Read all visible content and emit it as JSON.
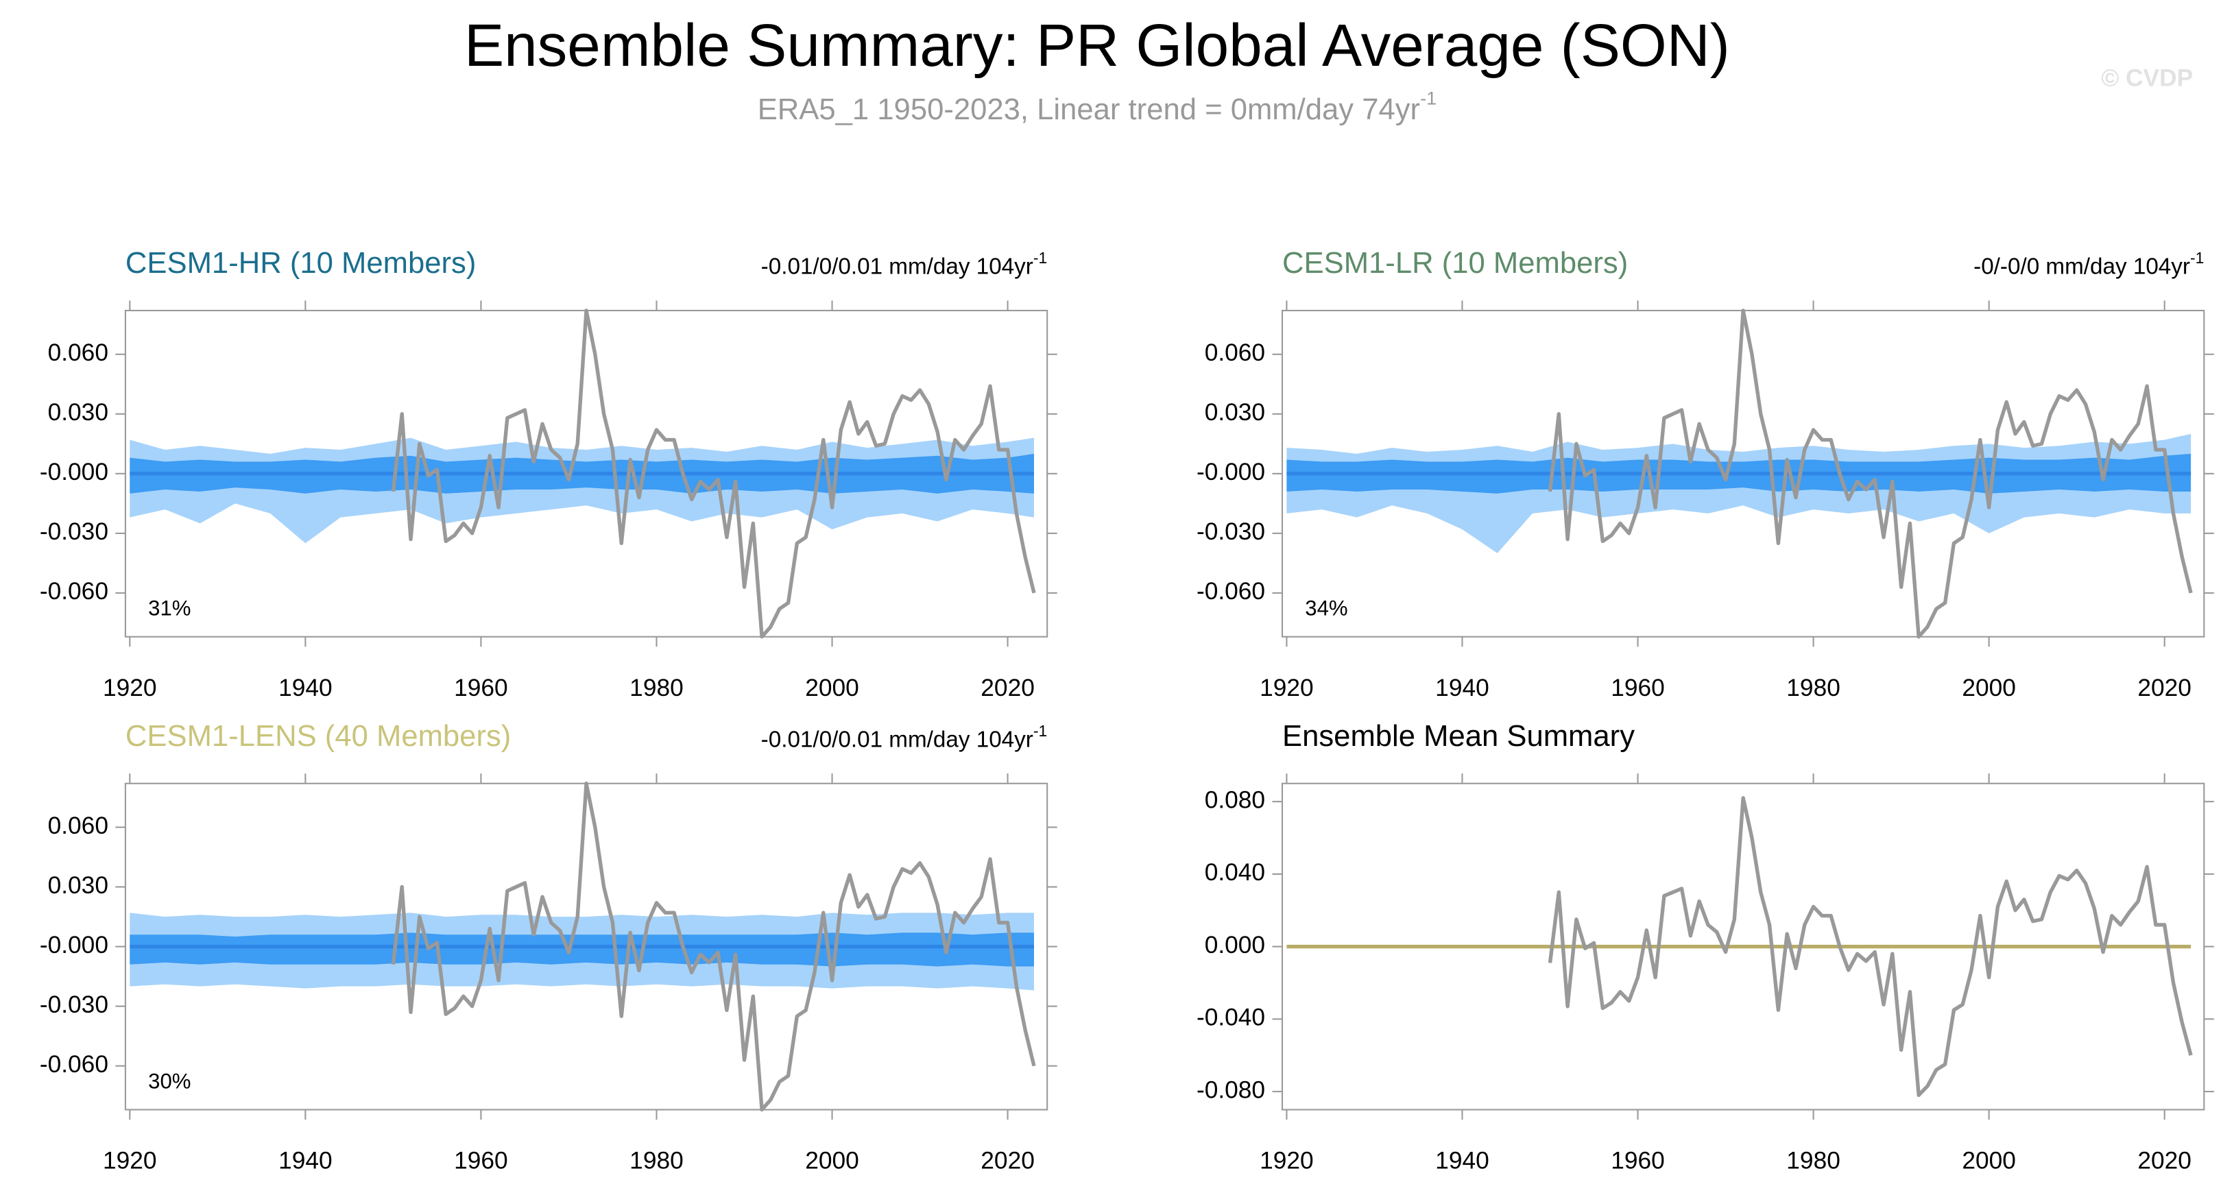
{
  "page": {
    "title": "Ensemble Summary: PR Global Average (SON)",
    "subtitle": "ERA5_1 1950-2023, Linear trend = 0mm/day 74yr",
    "subtitle_sup": "-1",
    "watermark": "© CVDP"
  },
  "observed": {
    "color": "#999999",
    "x": [
      1950,
      1951,
      1952,
      1953,
      1954,
      1955,
      1956,
      1957,
      1958,
      1959,
      1960,
      1961,
      1962,
      1963,
      1964,
      1965,
      1966,
      1967,
      1968,
      1969,
      1970,
      1971,
      1972,
      1973,
      1974,
      1975,
      1976,
      1977,
      1978,
      1979,
      1980,
      1981,
      1982,
      1983,
      1984,
      1985,
      1986,
      1987,
      1988,
      1989,
      1990,
      1991,
      1992,
      1993,
      1994,
      1995,
      1996,
      1997,
      1998,
      1999,
      2000,
      2001,
      2002,
      2003,
      2004,
      2005,
      2006,
      2007,
      2008,
      2009,
      2010,
      2011,
      2012,
      2013,
      2014,
      2015,
      2016,
      2017,
      2018,
      2019,
      2020,
      2021,
      2022,
      2023
    ],
    "values": [
      -0.009,
      0.03,
      -0.033,
      0.015,
      -0.001,
      0.002,
      -0.034,
      -0.031,
      -0.025,
      -0.03,
      -0.017,
      0.009,
      -0.017,
      0.028,
      0.03,
      0.032,
      0.006,
      0.025,
      0.012,
      0.008,
      -0.003,
      0.015,
      0.082,
      0.06,
      0.03,
      0.012,
      -0.035,
      0.007,
      -0.012,
      0.012,
      0.022,
      0.017,
      0.017,
      0.0,
      -0.013,
      -0.004,
      -0.008,
      -0.003,
      -0.032,
      -0.004,
      -0.057,
      -0.025,
      -0.082,
      -0.077,
      -0.068,
      -0.065,
      -0.035,
      -0.032,
      -0.013,
      0.017,
      -0.017,
      0.022,
      0.036,
      0.02,
      0.026,
      0.014,
      0.015,
      0.03,
      0.039,
      0.037,
      0.042,
      0.035,
      0.021,
      -0.003,
      0.017,
      0.012,
      0.019,
      0.025,
      0.044,
      0.012,
      0.012,
      -0.02,
      -0.042,
      -0.06
    ]
  },
  "chart_data": [
    {
      "type": "line",
      "title": "CESM1-HR (10 Members)",
      "title_color": "#1a6e8e",
      "trend_label": "-0.01/0/0.01 mm/day 104yr",
      "trend_sup": "-1",
      "annotation": "31%",
      "xlim": [
        1919.5,
        2024.5
      ],
      "xticks": [
        1920,
        1940,
        1960,
        1980,
        2000,
        2020
      ],
      "ylim": [
        -0.082,
        0.082
      ],
      "yticks": [
        {
          "value": 0.06,
          "label": "0.060"
        },
        {
          "value": 0.03,
          "label": "0.030"
        },
        {
          "value": 0,
          "label": "-0.000"
        },
        {
          "value": -0.03,
          "label": "-0.030"
        },
        {
          "value": -0.06,
          "label": "-0.060"
        }
      ],
      "band_x": [
        1920,
        1924,
        1928,
        1932,
        1936,
        1940,
        1944,
        1948,
        1952,
        1956,
        1960,
        1964,
        1968,
        1972,
        1976,
        1980,
        1984,
        1988,
        1992,
        1996,
        2000,
        2004,
        2008,
        2012,
        2016,
        2020,
        2023
      ],
      "bands": [
        {
          "color": "#a6d3fb",
          "upper": [
            0.017,
            0.012,
            0.014,
            0.012,
            0.01,
            0.013,
            0.012,
            0.015,
            0.018,
            0.012,
            0.014,
            0.016,
            0.013,
            0.012,
            0.014,
            0.012,
            0.013,
            0.011,
            0.014,
            0.012,
            0.016,
            0.013,
            0.015,
            0.017,
            0.014,
            0.016,
            0.018
          ],
          "lower": [
            -0.022,
            -0.018,
            -0.025,
            -0.015,
            -0.02,
            -0.035,
            -0.022,
            -0.02,
            -0.018,
            -0.025,
            -0.022,
            -0.02,
            -0.018,
            -0.016,
            -0.02,
            -0.018,
            -0.024,
            -0.02,
            -0.022,
            -0.018,
            -0.028,
            -0.022,
            -0.02,
            -0.024,
            -0.018,
            -0.02,
            -0.022
          ]
        },
        {
          "color": "#3d9cf3",
          "upper": [
            0.008,
            0.006,
            0.007,
            0.006,
            0.006,
            0.007,
            0.006,
            0.008,
            0.009,
            0.006,
            0.007,
            0.008,
            0.007,
            0.006,
            0.007,
            0.006,
            0.007,
            0.006,
            0.007,
            0.006,
            0.008,
            0.007,
            0.008,
            0.009,
            0.007,
            0.008,
            0.01
          ],
          "lower": [
            -0.01,
            -0.008,
            -0.009,
            -0.007,
            -0.008,
            -0.01,
            -0.008,
            -0.009,
            -0.008,
            -0.01,
            -0.009,
            -0.008,
            -0.008,
            -0.007,
            -0.008,
            -0.008,
            -0.01,
            -0.008,
            -0.009,
            -0.008,
            -0.01,
            -0.009,
            -0.008,
            -0.01,
            -0.008,
            -0.009,
            -0.01
          ]
        }
      ],
      "series": [
        {
          "color": "#2f86e6",
          "x": [
            1920,
            2023
          ],
          "values": [
            0,
            0
          ]
        }
      ]
    },
    {
      "type": "line",
      "title": "CESM1-LR (10 Members)",
      "title_color": "#5e8c6a",
      "trend_label": "-0/-0/0 mm/day 104yr",
      "trend_sup": "-1",
      "annotation": "34%",
      "xlim": [
        1919.5,
        2024.5
      ],
      "xticks": [
        1920,
        1940,
        1960,
        1980,
        2000,
        2020
      ],
      "ylim": [
        -0.082,
        0.082
      ],
      "yticks": [
        {
          "value": 0.06,
          "label": "0.060"
        },
        {
          "value": 0.03,
          "label": "0.030"
        },
        {
          "value": 0,
          "label": "-0.000"
        },
        {
          "value": -0.03,
          "label": "-0.030"
        },
        {
          "value": -0.06,
          "label": "-0.060"
        }
      ],
      "band_x": [
        1920,
        1924,
        1928,
        1932,
        1936,
        1940,
        1944,
        1948,
        1952,
        1956,
        1960,
        1964,
        1968,
        1972,
        1976,
        1980,
        1984,
        1988,
        1992,
        1996,
        2000,
        2004,
        2008,
        2012,
        2016,
        2020,
        2023
      ],
      "bands": [
        {
          "color": "#a6d3fb",
          "upper": [
            0.013,
            0.012,
            0.01,
            0.013,
            0.011,
            0.012,
            0.014,
            0.011,
            0.016,
            0.012,
            0.013,
            0.015,
            0.012,
            0.011,
            0.013,
            0.014,
            0.012,
            0.011,
            0.012,
            0.014,
            0.015,
            0.013,
            0.014,
            0.016,
            0.015,
            0.017,
            0.02
          ],
          "lower": [
            -0.02,
            -0.018,
            -0.022,
            -0.016,
            -0.02,
            -0.028,
            -0.04,
            -0.02,
            -0.018,
            -0.022,
            -0.02,
            -0.018,
            -0.02,
            -0.016,
            -0.022,
            -0.018,
            -0.02,
            -0.018,
            -0.024,
            -0.02,
            -0.03,
            -0.022,
            -0.02,
            -0.022,
            -0.018,
            -0.02,
            -0.02
          ]
        },
        {
          "color": "#3d9cf3",
          "upper": [
            0.007,
            0.006,
            0.006,
            0.007,
            0.006,
            0.006,
            0.007,
            0.006,
            0.008,
            0.006,
            0.007,
            0.007,
            0.006,
            0.006,
            0.007,
            0.007,
            0.006,
            0.006,
            0.006,
            0.007,
            0.008,
            0.007,
            0.007,
            0.008,
            0.007,
            0.009,
            0.01
          ],
          "lower": [
            -0.009,
            -0.008,
            -0.009,
            -0.008,
            -0.008,
            -0.009,
            -0.01,
            -0.008,
            -0.008,
            -0.009,
            -0.008,
            -0.008,
            -0.008,
            -0.007,
            -0.009,
            -0.008,
            -0.009,
            -0.008,
            -0.009,
            -0.008,
            -0.01,
            -0.009,
            -0.008,
            -0.009,
            -0.008,
            -0.009,
            -0.009
          ]
        }
      ],
      "series": [
        {
          "color": "#2f86e6",
          "x": [
            1920,
            2023
          ],
          "values": [
            0,
            0
          ]
        }
      ]
    },
    {
      "type": "line",
      "title": "CESM1-LENS (40 Members)",
      "title_color": "#c9c47a",
      "trend_label": "-0.01/0/0.01 mm/day 104yr",
      "trend_sup": "-1",
      "annotation": "30%",
      "xlim": [
        1919.5,
        2024.5
      ],
      "xticks": [
        1920,
        1940,
        1960,
        1980,
        2000,
        2020
      ],
      "ylim": [
        -0.082,
        0.082
      ],
      "yticks": [
        {
          "value": 0.06,
          "label": "0.060"
        },
        {
          "value": 0.03,
          "label": "0.030"
        },
        {
          "value": 0,
          "label": "-0.000"
        },
        {
          "value": -0.03,
          "label": "-0.030"
        },
        {
          "value": -0.06,
          "label": "-0.060"
        }
      ],
      "band_x": [
        1920,
        1924,
        1928,
        1932,
        1936,
        1940,
        1944,
        1948,
        1952,
        1956,
        1960,
        1964,
        1968,
        1972,
        1976,
        1980,
        1984,
        1988,
        1992,
        1996,
        2000,
        2004,
        2008,
        2012,
        2016,
        2020,
        2023
      ],
      "bands": [
        {
          "color": "#a6d3fb",
          "upper": [
            0.017,
            0.015,
            0.016,
            0.015,
            0.015,
            0.016,
            0.015,
            0.016,
            0.017,
            0.015,
            0.016,
            0.016,
            0.015,
            0.015,
            0.016,
            0.015,
            0.016,
            0.015,
            0.016,
            0.015,
            0.017,
            0.016,
            0.017,
            0.017,
            0.016,
            0.017,
            0.017
          ],
          "lower": [
            -0.02,
            -0.019,
            -0.02,
            -0.019,
            -0.02,
            -0.021,
            -0.02,
            -0.02,
            -0.019,
            -0.02,
            -0.02,
            -0.019,
            -0.02,
            -0.019,
            -0.02,
            -0.019,
            -0.02,
            -0.019,
            -0.02,
            -0.02,
            -0.021,
            -0.02,
            -0.02,
            -0.021,
            -0.02,
            -0.021,
            -0.022
          ]
        },
        {
          "color": "#3d9cf3",
          "upper": [
            0.006,
            0.006,
            0.006,
            0.005,
            0.006,
            0.006,
            0.006,
            0.006,
            0.007,
            0.006,
            0.006,
            0.006,
            0.006,
            0.006,
            0.006,
            0.006,
            0.006,
            0.006,
            0.006,
            0.006,
            0.007,
            0.006,
            0.007,
            0.007,
            0.006,
            0.007,
            0.007
          ],
          "lower": [
            -0.009,
            -0.008,
            -0.009,
            -0.008,
            -0.009,
            -0.009,
            -0.009,
            -0.009,
            -0.008,
            -0.009,
            -0.009,
            -0.008,
            -0.009,
            -0.008,
            -0.009,
            -0.008,
            -0.009,
            -0.008,
            -0.009,
            -0.009,
            -0.01,
            -0.009,
            -0.009,
            -0.01,
            -0.009,
            -0.01,
            -0.01
          ]
        }
      ],
      "series": [
        {
          "color": "#2f86e6",
          "x": [
            1920,
            2023
          ],
          "values": [
            0,
            0
          ]
        }
      ]
    },
    {
      "type": "line",
      "title": "Ensemble Mean Summary",
      "title_color": "#000000",
      "xlim": [
        1919.5,
        2024.5
      ],
      "xticks": [
        1920,
        1940,
        1960,
        1980,
        2000,
        2020
      ],
      "ylim": [
        -0.09,
        0.09
      ],
      "yticks": [
        {
          "value": 0.08,
          "label": "0.080"
        },
        {
          "value": 0.04,
          "label": "0.040"
        },
        {
          "value": 0,
          "label": "0.000"
        },
        {
          "value": -0.04,
          "label": "-0.040"
        },
        {
          "value": -0.08,
          "label": "-0.080"
        }
      ],
      "series": [
        {
          "color": "#b8ab66",
          "x": [
            1920,
            2023
          ],
          "values": [
            0,
            0
          ]
        }
      ]
    }
  ]
}
